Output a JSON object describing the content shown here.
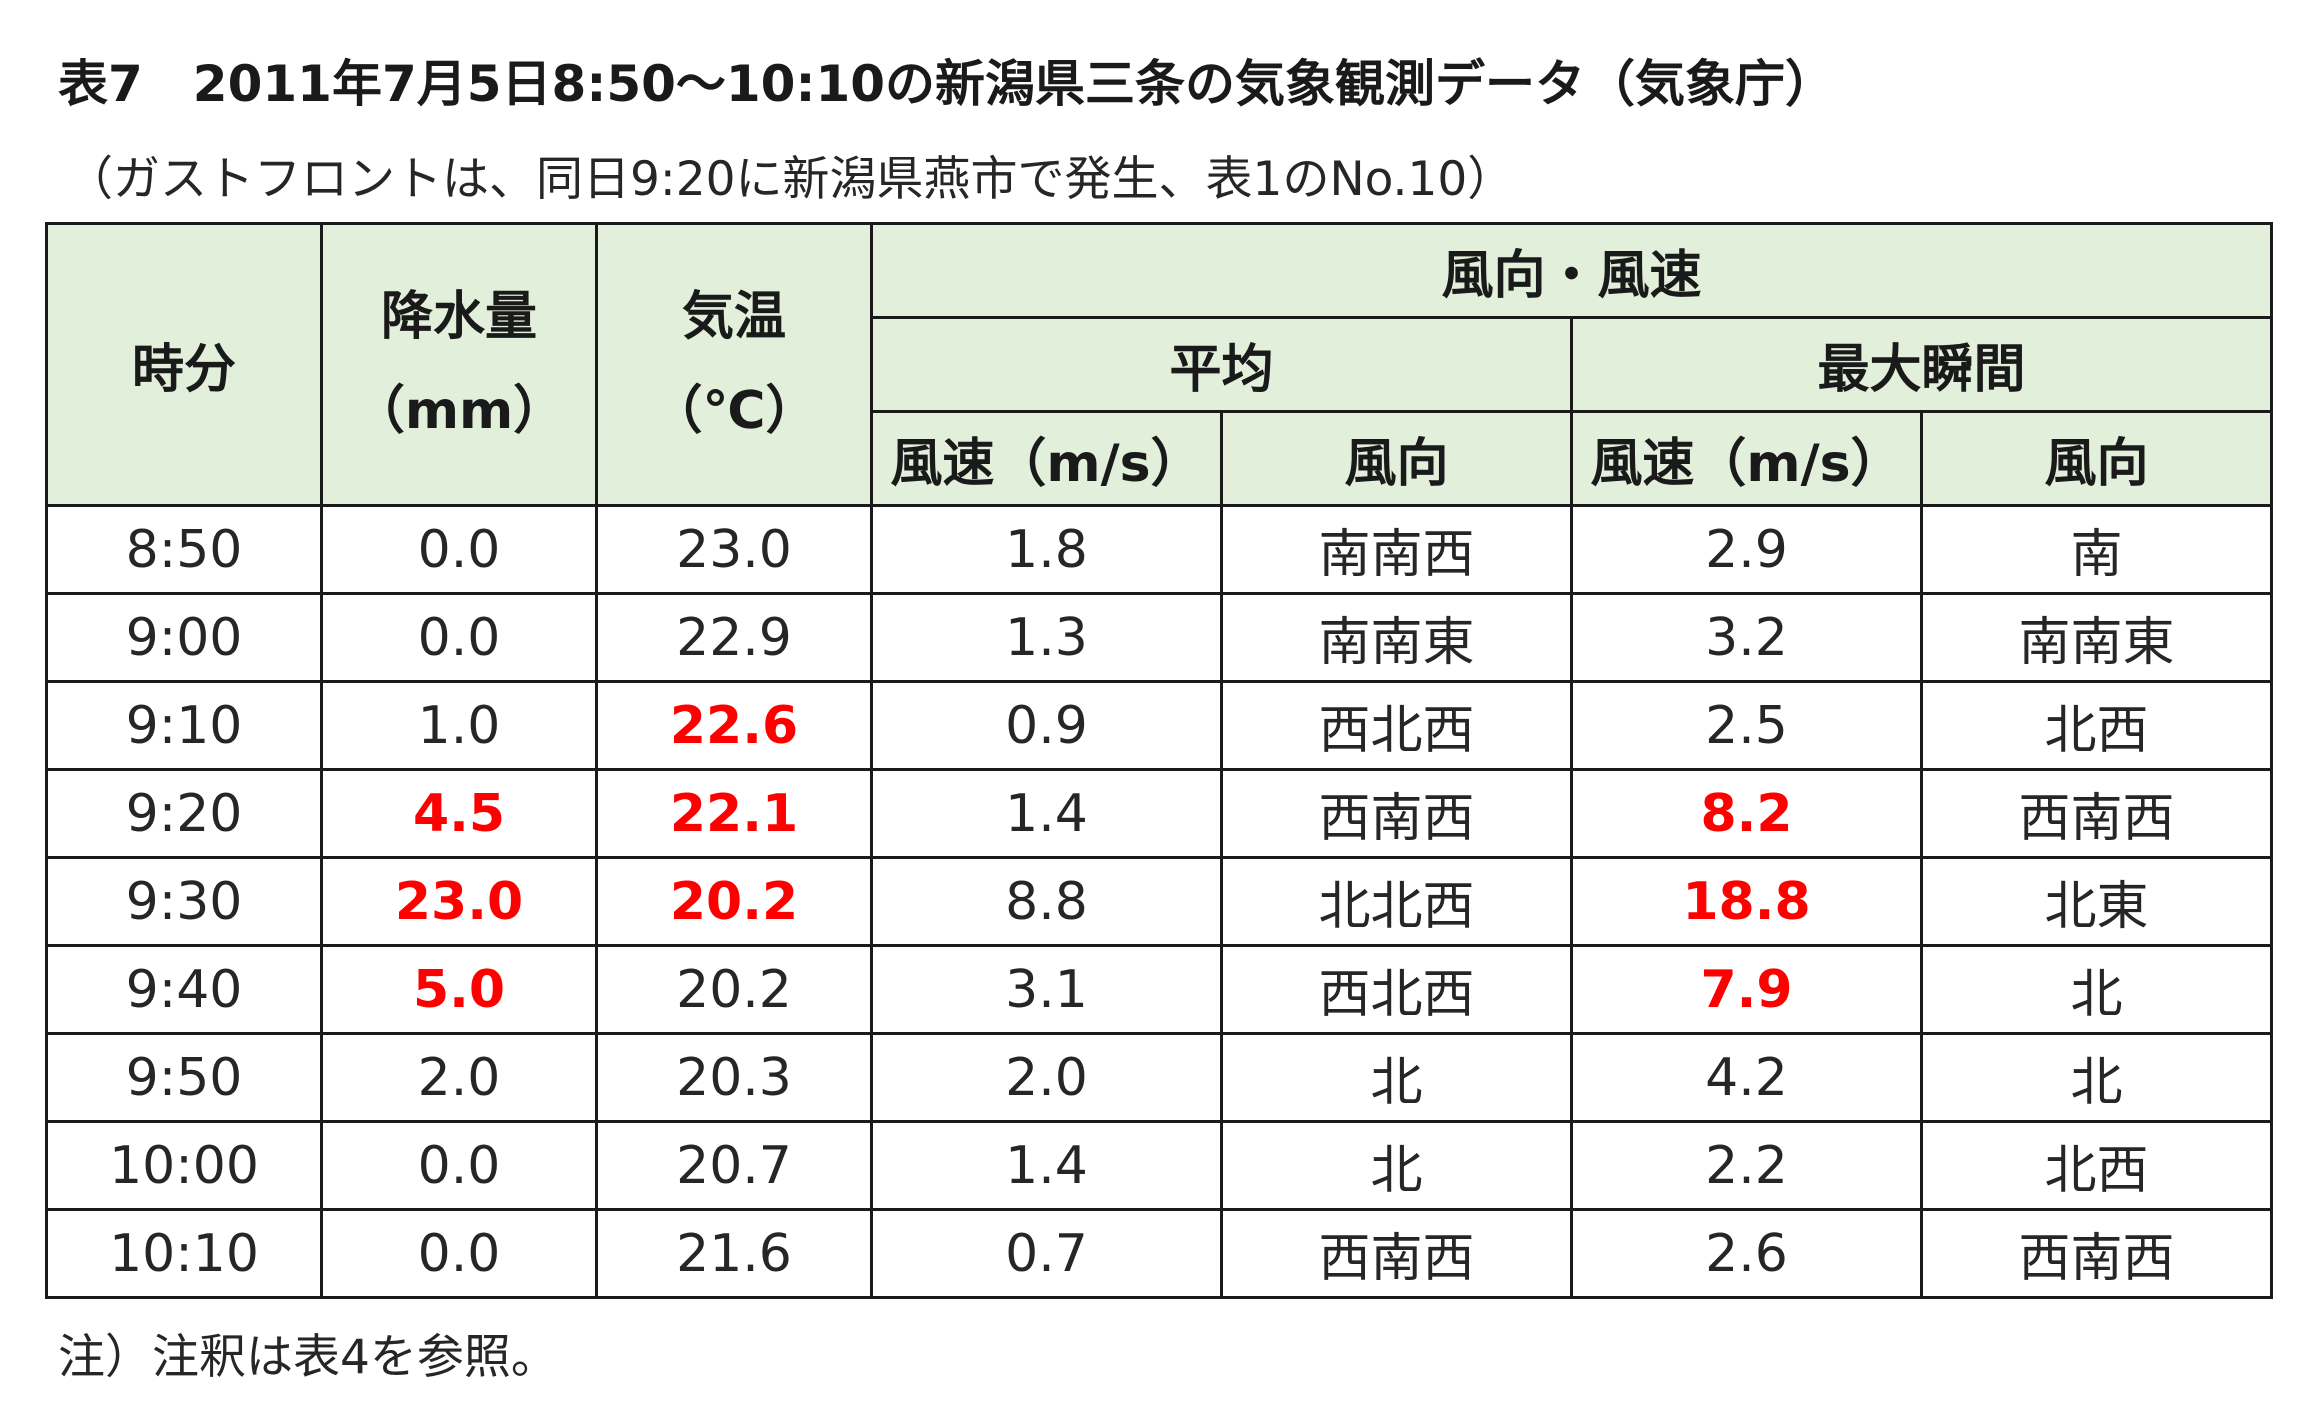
{
  "title": "表7　2011年7月5日8:50～10:10の新潟県三条の気象観測データ（気象庁）",
  "subtitle": "（ガストフロントは、同日9:20に新潟県燕市で発生、表1のNo.10）",
  "header": {
    "time": "時分",
    "precip_top": "降水量",
    "precip_unit": "（mm）",
    "temp_top": "気温",
    "temp_unit": "（℃）",
    "wind_group": "風向・風速",
    "avg_group": "平均",
    "max_group": "最大瞬間",
    "avg_speed": "風速（m/s）",
    "avg_dir": "風向",
    "max_speed": "風速（m/s）",
    "max_dir": "風向"
  },
  "rows": [
    {
      "time": "8:50",
      "precip": "0.0",
      "temp": "23.0",
      "avg_speed": "1.8",
      "avg_dir": "南南西",
      "max_speed": "2.9",
      "max_dir": "南"
    },
    {
      "time": "9:00",
      "precip": "0.0",
      "temp": "22.9",
      "avg_speed": "1.3",
      "avg_dir": "南南東",
      "max_speed": "3.2",
      "max_dir": "南南東"
    },
    {
      "time": "9:10",
      "precip": "1.0",
      "temp": "22.6",
      "avg_speed": "0.9",
      "avg_dir": "西北西",
      "max_speed": "2.5",
      "max_dir": "北西"
    },
    {
      "time": "9:20",
      "precip": "4.5",
      "temp": "22.1",
      "avg_speed": "1.4",
      "avg_dir": "西南西",
      "max_speed": "8.2",
      "max_dir": "西南西"
    },
    {
      "time": "9:30",
      "precip": "23.0",
      "temp": "20.2",
      "avg_speed": "8.8",
      "avg_dir": "北北西",
      "max_speed": "18.8",
      "max_dir": "北東"
    },
    {
      "time": "9:40",
      "precip": "5.0",
      "temp": "20.2",
      "avg_speed": "3.1",
      "avg_dir": "西北西",
      "max_speed": "7.9",
      "max_dir": "北"
    },
    {
      "time": "9:50",
      "precip": "2.0",
      "temp": "20.3",
      "avg_speed": "2.0",
      "avg_dir": "北",
      "max_speed": "4.2",
      "max_dir": "北"
    },
    {
      "time": "10:00",
      "precip": "0.0",
      "temp": "20.7",
      "avg_speed": "1.4",
      "avg_dir": "北",
      "max_speed": "2.2",
      "max_dir": "北西"
    },
    {
      "time": "10:10",
      "precip": "0.0",
      "temp": "21.6",
      "avg_speed": "0.7",
      "avg_dir": "西南西",
      "max_speed": "2.6",
      "max_dir": "西南西"
    }
  ],
  "highlight_color": "#ff0000",
  "header_bg_color": "#e2efda",
  "note": "注）注釈は表4を参照。"
}
